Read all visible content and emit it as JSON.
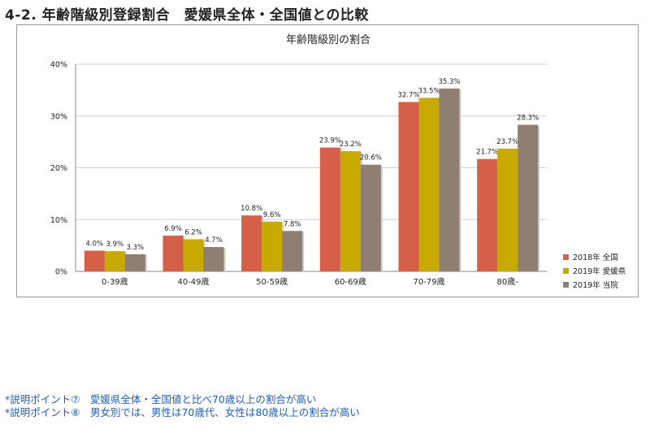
{
  "page_title": "4-2.  年齢階級別登録割合　愛媛県全体・全国値との比較",
  "notes": [
    "*説明ポイント⑦　愛媛県全体・全国値と比べ70歳以上の割合が高い",
    "*説明ポイント⑧　男女別では、男性は70歳代、女性は80歳以上の割合が高い"
  ],
  "chart_data": {
    "type": "bar",
    "title": "年齢階級別の割合",
    "categories": [
      "0-39歳",
      "40-49歳",
      "50-59歳",
      "60-69歳",
      "70-79歳",
      "80歳-"
    ],
    "ylim": [
      0,
      40
    ],
    "yticks": [
      0,
      10,
      20,
      30,
      40
    ],
    "ytick_labels": [
      "0%",
      "10%",
      "20%",
      "30%",
      "40%"
    ],
    "grid": true,
    "legend_position": "bottom-right",
    "series": [
      {
        "name": "2018年 全国",
        "color": "#d4604a",
        "values": [
          4.0,
          6.9,
          10.8,
          23.9,
          32.7,
          21.7
        ],
        "labels": [
          "4.0%",
          "6.9%",
          "10.8%",
          "23.9%",
          "32.7%",
          "21.7%"
        ]
      },
      {
        "name": "2019年 愛媛県",
        "color": "#c8a900",
        "values": [
          3.9,
          6.2,
          9.6,
          23.2,
          33.5,
          23.7
        ],
        "labels": [
          "3.9%",
          "6.2%",
          "9.6%",
          "23.2%",
          "33.5%",
          "23.7%"
        ]
      },
      {
        "name": "2019年 当院",
        "color": "#8f7e72",
        "values": [
          3.3,
          4.7,
          7.8,
          20.6,
          35.3,
          28.3
        ],
        "labels": [
          "3.3%",
          "4.7%",
          "7.8%",
          "20.6%",
          "35.3%",
          "28.3%"
        ]
      }
    ]
  }
}
